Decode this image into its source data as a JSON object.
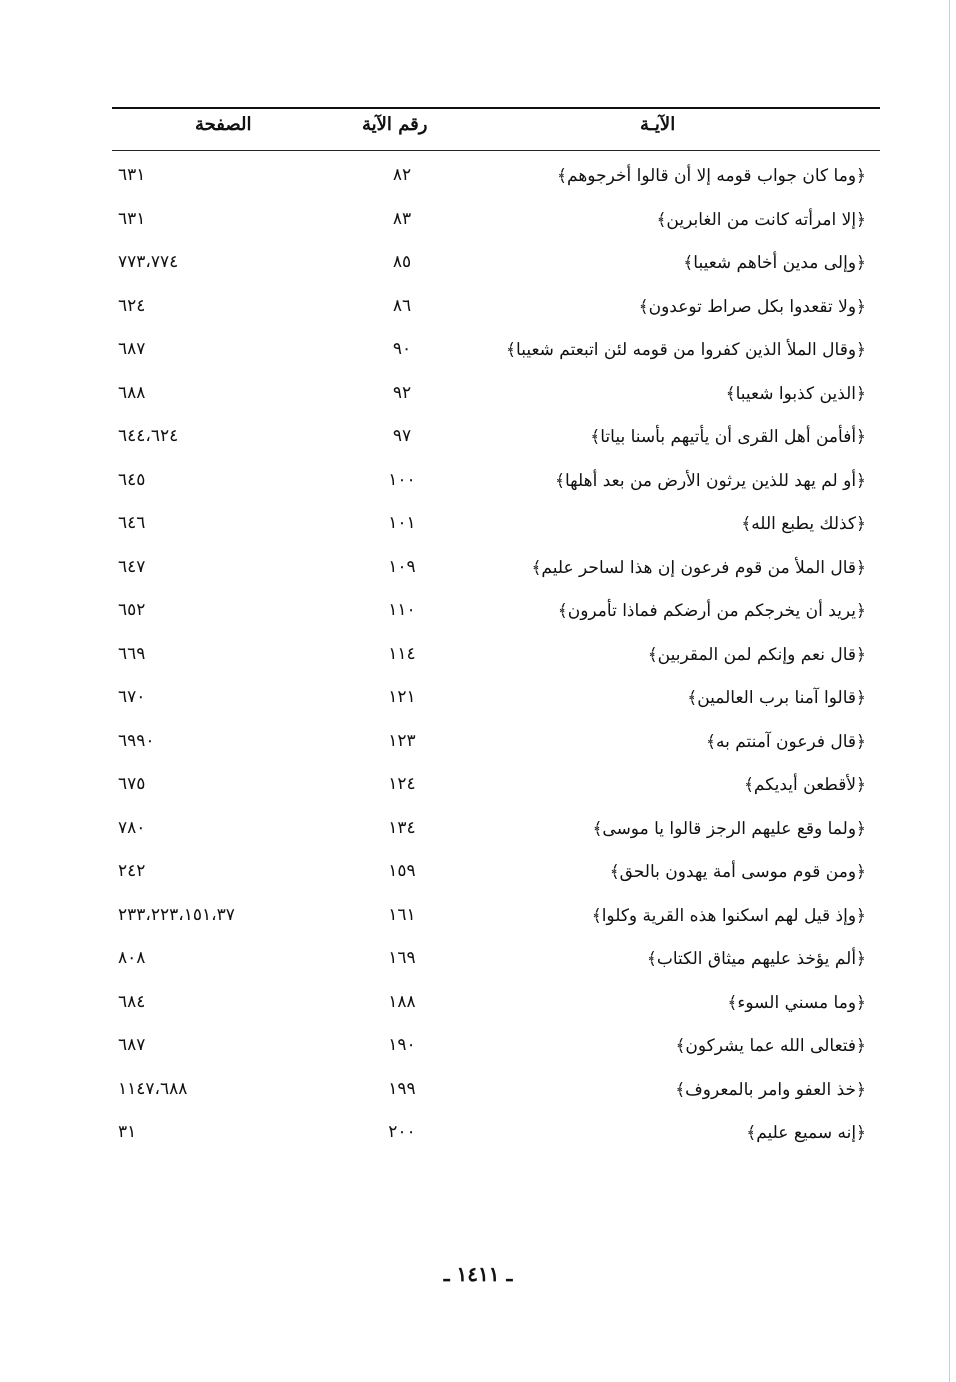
{
  "header": {
    "verse": "الآيـة",
    "verse_number": "رقم الآية",
    "page": "الصفحة"
  },
  "rows": [
    {
      "verse": "﴿وما كان جواب قومه إلا أن قالوا أخرجوهم﴾",
      "number": "٨٢",
      "page": "٦٣١"
    },
    {
      "verse": "﴿إلا امرأته كانت من الغابرين﴾",
      "number": "٨٣",
      "page": "٦٣١"
    },
    {
      "verse": "﴿وإلى مدين أخاهم شعيبا﴾",
      "number": "٨٥",
      "page": "٧٧٣،٧٧٤"
    },
    {
      "verse": "﴿ولا تقعدوا بكل صراط توعدون﴾",
      "number": "٨٦",
      "page": "٦٢٤"
    },
    {
      "verse": "﴿وقال الملأ الذين كفروا من قومه لئن اتبعتم شعيبا﴾",
      "number": "٩٠",
      "page": "٦٨٧"
    },
    {
      "verse": "﴿الذين كذبوا شعيبا﴾",
      "number": "٩٢",
      "page": "٦٨٨"
    },
    {
      "verse": "﴿أفأمن أهل القرى أن يأتيهم بأسنا بياتا﴾",
      "number": "٩٧",
      "page": "٦٤٤،٦٢٤"
    },
    {
      "verse": "﴿أو لم يهد للذين يرثون الأرض من بعد أهلها﴾",
      "number": "١٠٠",
      "page": "٦٤٥"
    },
    {
      "verse": "﴿كذلك يطبع الله﴾",
      "number": "١٠١",
      "page": "٦٤٦"
    },
    {
      "verse": "﴿قال الملأ من قوم فرعون إن هذا لساحر عليم﴾",
      "number": "١٠٩",
      "page": "٦٤٧"
    },
    {
      "verse": "﴿يريد أن يخرجكم من أرضكم فماذا تأمرون﴾",
      "number": "١١٠",
      "page": "٦٥٢"
    },
    {
      "verse": "﴿قال نعم وإنكم لمن المقربين﴾",
      "number": "١١٤",
      "page": "٦٦٩"
    },
    {
      "verse": "﴿قالوا آمنا برب العالمين﴾",
      "number": "١٢١",
      "page": "٦٧٠"
    },
    {
      "verse": "﴿قال فرعون آمنتم به﴾",
      "number": "١٢٣",
      "page": "٦٩٩٠"
    },
    {
      "verse": "﴿لأقطعن أيديكم﴾",
      "number": "١٢٤",
      "page": "٦٧٥"
    },
    {
      "verse": "﴿ولما وقع عليهم الرجز قالوا يا موسى﴾",
      "number": "١٣٤",
      "page": "٧٨٠"
    },
    {
      "verse": "﴿ومن قوم موسى أمة يهدون بالحق﴾",
      "number": "١٥٩",
      "page": "٢٤٢"
    },
    {
      "verse": "﴿وإذ قيل لهم اسكنوا هذه القرية وكلوا﴾",
      "number": "١٦١",
      "page": "٢٣٣،٢٢٣،١٥١،٣٧"
    },
    {
      "verse": "﴿ألم يؤخذ عليهم ميثاق الكتاب﴾",
      "number": "١٦٩",
      "page": "٨٠٨"
    },
    {
      "verse": "﴿وما مسني السوء﴾",
      "number": "١٨٨",
      "page": "٦٨٤"
    },
    {
      "verse": "﴿فتعالى الله عما يشركون﴾",
      "number": "١٩٠",
      "page": "٦٨٧"
    },
    {
      "verse": "﴿خذ العفو وامر بالمعروف﴾",
      "number": "١٩٩",
      "page": "١١٤٧،٦٨٨"
    },
    {
      "verse": "﴿إنه سميع عليم﴾",
      "number": "٢٠٠",
      "page": "٣١"
    }
  ],
  "footer": {
    "page_number": "ـ ١٤١١ ـ"
  }
}
